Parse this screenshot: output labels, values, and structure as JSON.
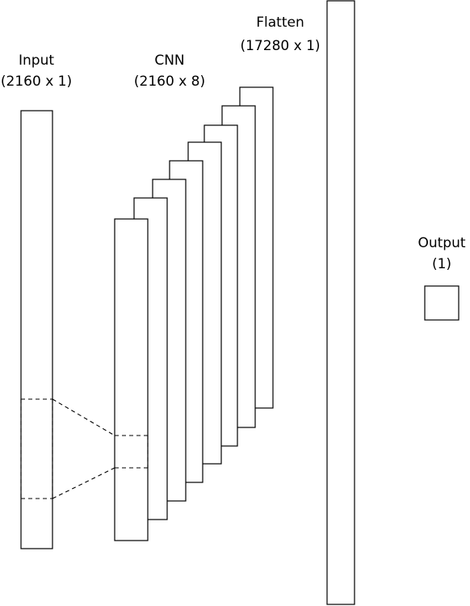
{
  "layers": {
    "input": {
      "name": "Input",
      "shape": "(2160 x 1)"
    },
    "cnn": {
      "name": "CNN",
      "shape": "(2160 x 8)"
    },
    "flatten": {
      "name": "Flatten",
      "shape": "(17280 x 1)"
    },
    "output": {
      "name": "Output",
      "shape": "(1)"
    }
  },
  "cnn_channel_count": 8,
  "colors": {
    "stroke": "#000000",
    "fill": "#ffffff"
  }
}
